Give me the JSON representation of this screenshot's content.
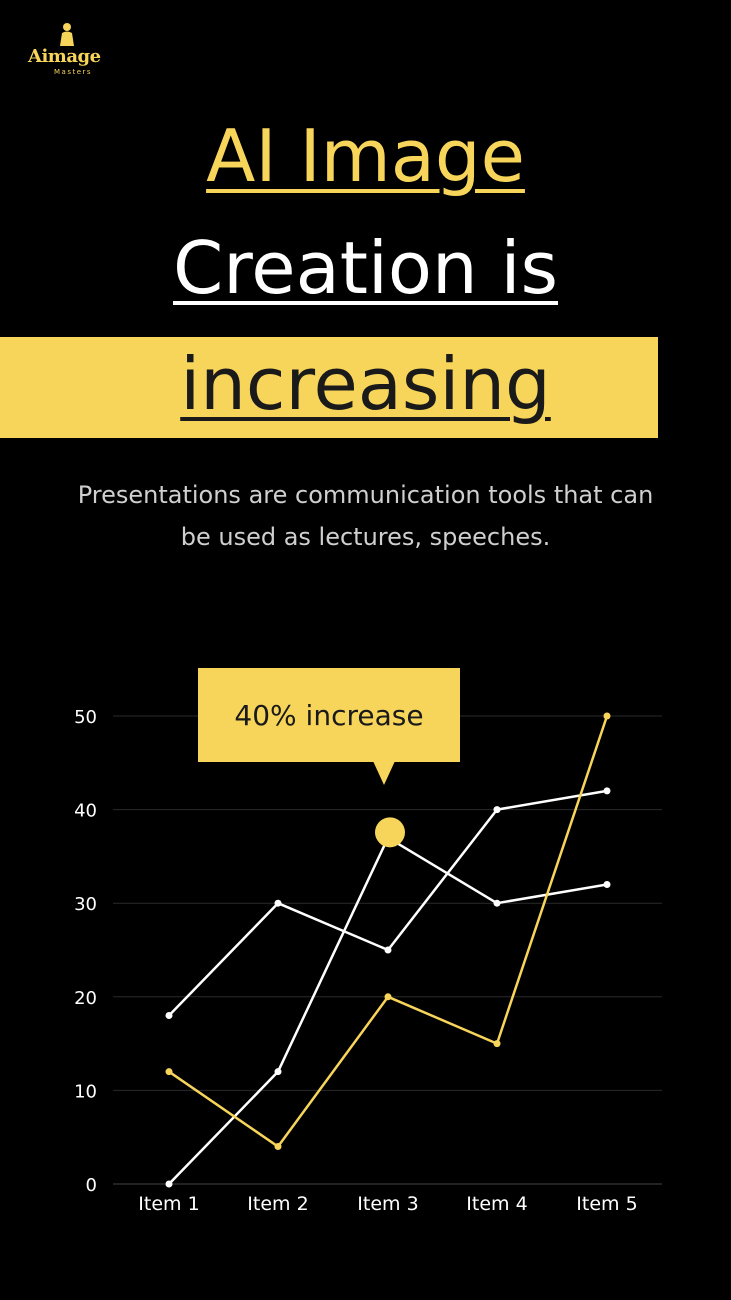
{
  "logo": {
    "wordmark": "Aimage",
    "tagline": "Masters"
  },
  "headline": {
    "line1": "AI Image",
    "line2": "Creation is",
    "line3": "increasing"
  },
  "subtitle": "Presentations are communication tools that can be used as lectures, speeches.",
  "callout": {
    "text": "40% increase"
  },
  "colors": {
    "background": "#000000",
    "accent": "#f7d55a",
    "white_series": "#ffffff",
    "grid": "#2a2a2a"
  },
  "chart_data": {
    "type": "line",
    "categories": [
      "Item 1",
      "Item 2",
      "Item 3",
      "Item 4",
      "Item 5"
    ],
    "ylim": [
      0,
      50
    ],
    "yticks": [
      "0",
      "10",
      "20",
      "30",
      "40",
      "50"
    ],
    "grid": true,
    "series": [
      {
        "color": "#ffffff",
        "values": [
          18,
          30,
          25,
          40,
          42
        ]
      },
      {
        "color": "#ffffff",
        "values": [
          0,
          12,
          37,
          30,
          32
        ]
      },
      {
        "color": "#f7d55a",
        "values": [
          12,
          4,
          20,
          15,
          50
        ]
      }
    ],
    "highlight": {
      "category_index": 2,
      "value": 38,
      "color": "#f7d55a"
    }
  }
}
